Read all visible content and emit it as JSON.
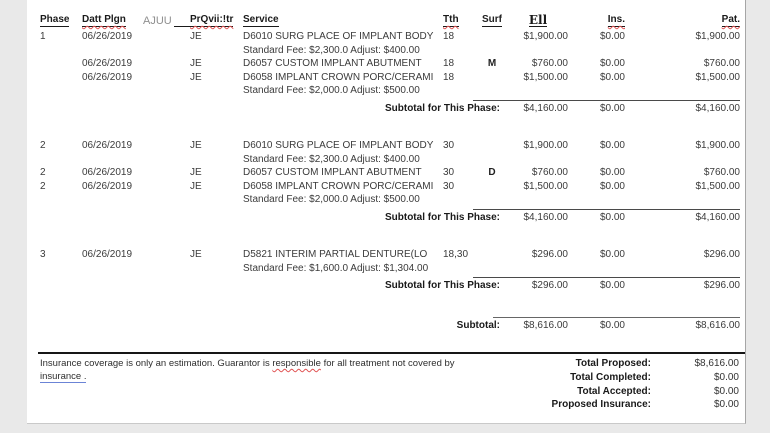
{
  "colors": {
    "backdrop": "#e9e9e9",
    "page": "#ffffff",
    "text": "#3b3b3b",
    "header_text": "#1a1a1a",
    "muted": "#8f8f8f",
    "squiggle": "#e05252",
    "link_underline": "#6b84d6"
  },
  "table": {
    "headers": {
      "phase": "Phase",
      "date": "Datt Plgn",
      "extra": "AJUU",
      "prov": "PrQvii:!tr",
      "service": "Service",
      "tth": "Tth",
      "surf": "Surf",
      "fee": "Ell",
      "ins": "Ins.",
      "pat": "Pat."
    },
    "sections": [
      {
        "rows": [
          {
            "phase": "1",
            "date": "06/26/2019",
            "prov": "JE",
            "service": "D6010 SURG PLACE OF IMPLANT BODY",
            "tth": "18",
            "fee": "$1,900.00",
            "ins": "$0.00",
            "pat": "$1,900.00"
          },
          {
            "type": "note",
            "service": "Standard Fee: $2,300.0 Adjust: $400.00"
          },
          {
            "date": "06/26/2019",
            "prov": "JE",
            "service": "D6057 CUSTOM IMPLANT ABUTMENT",
            "tth": "18",
            "surf": "M",
            "fee": "$760.00",
            "ins": "$0.00",
            "pat": "$760.00"
          },
          {
            "date": "06/26/2019",
            "prov": "JE",
            "service": "D6058 IMPLANT CROWN PORC/CERAMI",
            "tth": "18",
            "fee": "$1,500.00",
            "ins": "$0.00",
            "pat": "$1,500.00"
          },
          {
            "type": "note",
            "service": "Standard Fee: $2,000.0 Adjust: $500.00"
          }
        ],
        "subtotal": {
          "label": "Subtotal for This Phase:",
          "fee": "$4,160.00",
          "ins": "$0.00",
          "pat": "$4,160.00"
        }
      },
      {
        "rows": [
          {
            "phase": "2",
            "date": "06/26/2019",
            "prov": "JE",
            "service": "D6010 SURG PLACE OF IMPLANT BODY",
            "tth": "30",
            "fee": "$1,900.00",
            "ins": "$0.00",
            "pat": "$1,900.00"
          },
          {
            "type": "note",
            "service": "Standard Fee: $2,300.0 Adjust: $400.00"
          },
          {
            "phase": "2",
            "date": "06/26/2019",
            "prov": "JE",
            "service": "D6057 CUSTOM IMPLANT ABUTMENT",
            "tth": "30",
            "surf": "D",
            "fee": "$760.00",
            "ins": "$0.00",
            "pat": "$760.00"
          },
          {
            "phase": "2",
            "date": "06/26/2019",
            "prov": "JE",
            "service": "D6058 IMPLANT CROWN PORC/CERAMI",
            "tth": "30",
            "fee": "$1,500.00",
            "ins": "$0.00",
            "pat": "$1,500.00"
          },
          {
            "type": "note",
            "service": "Standard Fee: $2,000.0 Adjust: $500.00"
          }
        ],
        "subtotal": {
          "label": "Subtotal for This Phase:",
          "fee": "$4,160.00",
          "ins": "$0.00",
          "pat": "$4,160.00"
        }
      },
      {
        "rows": [
          {
            "phase": "3",
            "date": "06/26/2019",
            "prov": "JE",
            "service": "D5821  INTERIM PARTIAL DENTURE(LO",
            "tth": "18,30",
            "fee": "$296.00",
            "ins": "$0.00",
            "pat": "$296.00"
          },
          {
            "type": "note",
            "service": "Standard Fee: $1,600.0 Adjust: $1,304.00"
          }
        ],
        "subtotal": {
          "label": "Subtotal for This Phase:",
          "fee": "$296.00",
          "ins": "$0.00",
          "pat": "$296.00"
        }
      }
    ],
    "grand_subtotal": {
      "label": "Subtotal:",
      "fee": "$8,616.00",
      "ins": "$0.00",
      "pat": "$8,616.00"
    }
  },
  "footer": {
    "note_part1": "Insurance coverage is only an estimation. Guarantor is ",
    "note_word": "responsible",
    "note_part2": " for all treatment not covered by",
    "note_line2": "insurance .",
    "totals": [
      {
        "label": "Total Proposed:",
        "value": "$8,616.00"
      },
      {
        "label": "Total Completed:",
        "value": "$0.00"
      },
      {
        "label": "Total Accepted:",
        "value": "$0.00"
      },
      {
        "label": "Proposed Insurance:",
        "value": "$0.00"
      }
    ]
  }
}
